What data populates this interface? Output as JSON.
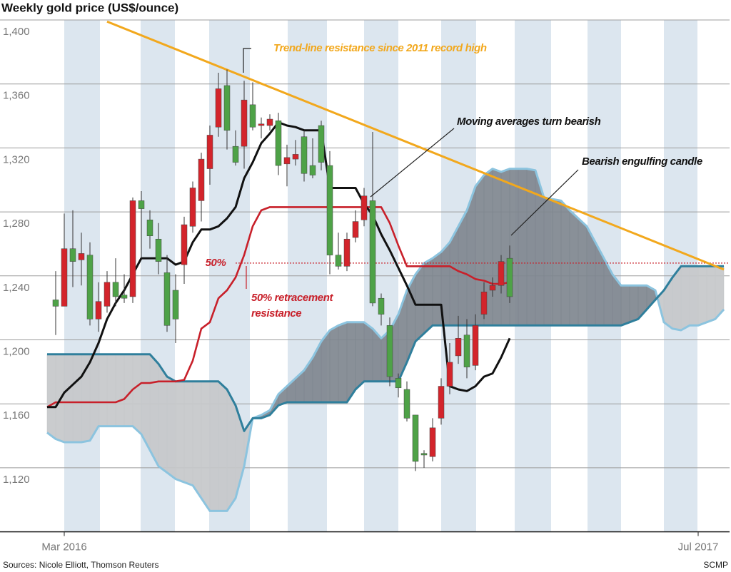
{
  "chart_data": {
    "type": "candlestick",
    "title": "Weekly gold price (US$/ounce)",
    "source": "Sources: Nicole Elliott, Thomson Reuters",
    "credit": "SCMP",
    "categories": [
      null,
      null,
      null,
      null,
      null,
      null,
      null,
      null,
      null,
      null,
      null,
      null,
      null,
      null,
      null,
      null,
      null,
      null,
      null,
      null,
      null,
      null,
      null,
      null,
      null,
      null,
      null,
      null,
      null,
      null,
      null,
      null,
      null,
      null,
      null,
      null,
      null,
      null,
      null,
      null,
      null,
      null,
      null,
      null,
      null,
      null,
      null,
      null,
      null,
      null,
      null,
      null,
      null,
      null,
      null,
      null,
      null,
      null,
      null,
      null,
      null,
      null,
      null,
      null,
      null,
      null,
      null,
      null,
      null,
      null,
      null,
      null,
      null,
      null,
      null,
      null,
      null,
      null,
      null,
      null
    ],
    "ylim": [
      1080,
      1400
    ],
    "yticks": [
      {
        "value": 1120,
        "label": "1,120"
      },
      {
        "value": 1160,
        "label": "1,160"
      },
      {
        "value": 1200,
        "label": "1,200"
      },
      {
        "value": 1240,
        "label": "1,240"
      },
      {
        "value": 1280,
        "label": "1,280"
      },
      {
        "value": 1320,
        "label": "1,320"
      },
      {
        "value": 1360,
        "label": "1,360"
      },
      {
        "value": 1400,
        "label": "1,400"
      }
    ],
    "xticks": [
      {
        "value": 2,
        "label": "Mar 2016"
      },
      {
        "value": 76,
        "label": "Jul 2017"
      }
    ],
    "grid": true,
    "candles": {
      "up_color": "#d3242b",
      "down_color": "#4ea247",
      "open": [
        null,
        1225,
        1221,
        1257,
        1250,
        1253,
        1213,
        1221,
        1236,
        1228,
        1227,
        1287,
        1275,
        1263,
        1242,
        1231,
        1247,
        1271,
        1287,
        1307,
        1333,
        1359,
        1321,
        1321,
        1347,
        1334,
        1334,
        1337,
        1310,
        1313,
        1327,
        1309,
        1334,
        1309,
        1253,
        1246,
        1264,
        1275,
        1287,
        1226,
        1209,
        1176,
        1169,
        1153,
        1129,
        1127,
        1151,
        1171,
        1190,
        1203,
        1184,
        1216,
        1231,
        1234,
        1251,
        null,
        null,
        null,
        null,
        null,
        null,
        null,
        null,
        null,
        null,
        null,
        null,
        null,
        null,
        null,
        null,
        null,
        null,
        null,
        null,
        null,
        null,
        null,
        null,
        null
      ],
      "high": [
        null,
        1243,
        1279,
        1281,
        1267,
        1261,
        1236,
        1243,
        1251,
        1241,
        1289,
        1293,
        1281,
        1273,
        1253,
        1241,
        1277,
        1299,
        1317,
        1334,
        1367,
        1369,
        1331,
        1362,
        1361,
        1339,
        1341,
        1342,
        1322,
        1325,
        1331,
        1326,
        1337,
        1318,
        1267,
        1267,
        1281,
        1295,
        1330,
        1229,
        1214,
        1179,
        1174,
        1153,
        1131,
        1151,
        1176,
        1198,
        1215,
        1213,
        1216,
        1236,
        1239,
        1253,
        1259,
        null,
        null,
        null,
        null,
        null,
        null,
        null,
        null,
        null,
        null,
        null,
        null,
        null,
        null,
        null,
        null,
        null,
        null,
        null,
        null,
        null,
        null,
        null,
        null,
        null
      ],
      "low": [
        null,
        1203,
        1221,
        1233,
        1234,
        1209,
        1205,
        1217,
        1221,
        1223,
        1223,
        1251,
        1257,
        1241,
        1205,
        1198,
        1235,
        1267,
        1274,
        1297,
        1327,
        1319,
        1309,
        1307,
        1331,
        1326,
        1331,
        1303,
        1296,
        1309,
        1299,
        1301,
        1306,
        1241,
        1244,
        1243,
        1261,
        1271,
        1221,
        1209,
        1171,
        1164,
        1149,
        1118,
        1120,
        1124,
        1147,
        1166,
        1185,
        1176,
        1181,
        1213,
        1227,
        1229,
        1223,
        null,
        null,
        null,
        null,
        null,
        null,
        null,
        null,
        null,
        null,
        null,
        null,
        null,
        null,
        null,
        null,
        null,
        null,
        null,
        null,
        null,
        null,
        null,
        null,
        null
      ],
      "close": [
        null,
        1221,
        1257,
        1249,
        1254,
        1213,
        1224,
        1236,
        1227,
        1226,
        1287,
        1282,
        1265,
        1249,
        1209,
        1213,
        1272,
        1295,
        1313,
        1328,
        1357,
        1331,
        1311,
        1350,
        1333,
        1335,
        1338,
        1309,
        1314,
        1316,
        1304,
        1303,
        1311,
        1253,
        1246,
        1263,
        1274,
        1290,
        1223,
        1216,
        1177,
        1170,
        1151,
        1124,
        1128,
        1145,
        1171,
        1186,
        1201,
        1183,
        1209,
        1230,
        1234,
        1249,
        1227,
        null,
        null,
        null,
        null,
        null,
        null,
        null,
        null,
        null,
        null,
        null,
        null,
        null,
        null,
        null,
        null,
        null,
        null,
        null,
        null,
        null,
        null,
        null,
        null,
        null
      ]
    },
    "series": [
      {
        "color": "#111111",
        "values": [
          1158,
          1158,
          1167,
          1172,
          1177,
          1186,
          1198,
          1213,
          1223,
          1231,
          1241,
          1251,
          1251,
          1251,
          1251,
          1247,
          1249,
          1261,
          1269,
          1269,
          1271,
          1276,
          1283,
          1301,
          1311,
          1323,
          1329,
          1336,
          1334,
          1333,
          1331,
          1331,
          1331,
          1295,
          1295,
          1295,
          1295,
          1285,
          1278,
          1266,
          1256,
          1245,
          1234,
          1222,
          1222,
          1222,
          1222,
          1171,
          1169,
          1168,
          1171,
          1177,
          1179,
          1189,
          1201,
          null,
          null,
          null,
          null,
          null,
          null,
          null,
          null,
          null,
          null,
          null,
          null,
          null,
          null,
          null,
          null,
          null,
          null,
          null,
          null,
          null,
          null,
          null,
          null,
          null
        ]
      },
      {
        "color": "#c8202a",
        "values": [
          1158,
          1161,
          1161,
          1161,
          1161,
          1161,
          1161,
          1161,
          1161,
          1163,
          1169,
          1173,
          1173,
          1174,
          1174,
          1174,
          1175,
          1187,
          1207,
          1211,
          1226,
          1231,
          1239,
          1253,
          1271,
          1281,
          1283,
          1283,
          1283,
          1283,
          1283,
          1283,
          1283,
          1283,
          1283,
          1283,
          1283,
          1283,
          1283,
          1283,
          1273,
          1259,
          1246,
          1246,
          1246,
          1246,
          1246,
          1246,
          1243,
          1241,
          1238,
          1237,
          1235,
          1235,
          1236,
          null,
          null,
          null,
          null,
          null,
          null,
          null,
          null,
          null,
          null,
          null,
          null,
          null,
          null,
          null,
          null,
          null,
          null,
          null,
          null,
          null,
          null,
          null,
          null,
          null
        ]
      },
      {
        "color": "#8cc4df",
        "values": [
          1142,
          1138,
          1136,
          1136,
          1136,
          1137,
          1146,
          1146,
          1146,
          1146,
          1146,
          1141,
          1131,
          1121,
          1117,
          1113,
          1111,
          1109,
          1101,
          1093,
          1093,
          1093,
          1101,
          1121,
          1151,
          1153,
          1156,
          1166,
          1171,
          1176,
          1181,
          1189,
          1199,
          1206,
          1209,
          1211,
          1211,
          1211,
          1207,
          1201,
          1206,
          1216,
          1231,
          1241,
          1248,
          1251,
          1255,
          1261,
          1271,
          1281,
          1296,
          1303,
          1307,
          1305,
          1307,
          1307,
          1307,
          1306,
          1289,
          1288,
          1287,
          1281,
          1276,
          1271,
          1261,
          1251,
          1241,
          1234,
          1234,
          1234,
          1234,
          1231,
          1211,
          1207,
          1206,
          1209,
          1209,
          1211,
          1213,
          1219
        ]
      },
      {
        "color": "#2f7f9c",
        "values": [
          1191,
          1191,
          1191,
          1191,
          1191,
          1191,
          1191,
          1191,
          1191,
          1191,
          1191,
          1191,
          1191,
          1185,
          1177,
          1174,
          1174,
          1174,
          1174,
          1174,
          1174,
          1169,
          1159,
          1143,
          1151,
          1151,
          1153,
          1159,
          1161,
          1161,
          1161,
          1161,
          1161,
          1161,
          1161,
          1161,
          1169,
          1174,
          1174,
          1174,
          1174,
          1174,
          1186,
          1199,
          1204,
          1209,
          1209,
          1209,
          1209,
          1209,
          1209,
          1209,
          1209,
          1209,
          1209,
          1209,
          1209,
          1209,
          1209,
          1209,
          1209,
          1209,
          1209,
          1209,
          1209,
          1209,
          1209,
          1209,
          1211,
          1213,
          1219,
          1225,
          1231,
          1239,
          1246,
          1246,
          1246,
          1246,
          1246,
          1246
        ]
      }
    ],
    "cloud": {
      "a_above_color": "#7f878f",
      "b_above_color": "#c6c8ca"
    },
    "trend_line": {
      "color": "#f2a81d",
      "x": [
        7,
        79
      ],
      "values": [
        1399,
        1244
      ]
    },
    "level": {
      "value": 1248,
      "label": "50%",
      "color": "#c8202a"
    },
    "annotations": {
      "trend": "Trend-line resistance since 2011 record high",
      "moving_averages": "Moving averages turn bearish",
      "engulfing": "Bearish engulfing candle",
      "retracement": [
        "50% retracement",
        "resistance"
      ]
    }
  }
}
